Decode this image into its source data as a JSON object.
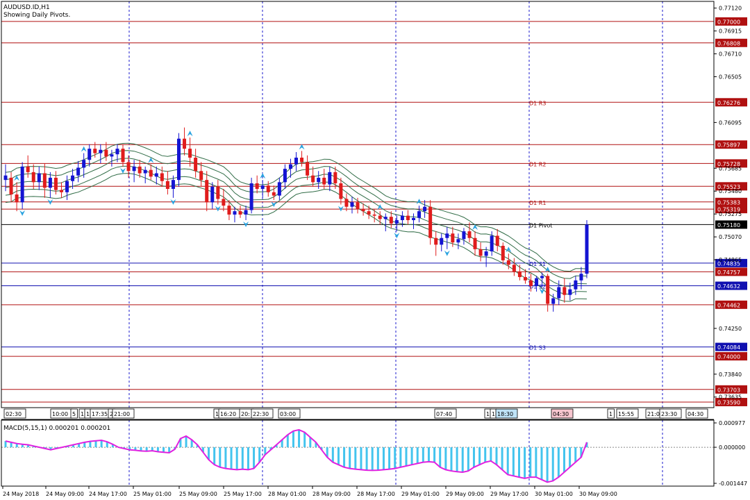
{
  "header": {
    "symbol": "AUDUSD.ID,H1",
    "subtitle": "Showing Daily Pivots."
  },
  "colors": {
    "bull": "#1414d2",
    "bear": "#e01c1c",
    "band": "#2f6b45",
    "resistance_line": "#b01010",
    "support_line": "#1010b0",
    "macd_hist": "#43c4ee",
    "macd_signal": "#e020e0",
    "arrow": "#2aa3e0",
    "grid": "#1a1acc"
  },
  "chart_data": {
    "type": "candlestick",
    "y_range": [
      0.7354,
      0.7718
    ],
    "price_ticks": [
      "0.77120",
      "0.76915",
      "0.76710",
      "0.76505",
      "0.76095",
      "0.75685",
      "0.75480",
      "0.75275",
      "0.75070",
      "0.74865",
      "0.74250",
      "0.73840",
      "0.73635"
    ],
    "pivot_lines": [
      {
        "name": "",
        "value": 0.77,
        "label": "0.77000",
        "kind": "res"
      },
      {
        "name": "",
        "value": 0.76808,
        "label": "0.76808",
        "kind": "res"
      },
      {
        "name": "D1 R3",
        "value": 0.76276,
        "label": "0.76276",
        "kind": "res"
      },
      {
        "name": "",
        "value": 0.75897,
        "label": "0.75897",
        "kind": "res"
      },
      {
        "name": "D1 R2",
        "value": 0.75728,
        "label": "0.75728",
        "kind": "res"
      },
      {
        "name": "",
        "value": 0.75523,
        "label": "0.75523",
        "kind": "res"
      },
      {
        "name": "D1 R1",
        "value": 0.75383,
        "label": "0.75383",
        "kind": "res"
      },
      {
        "name": "",
        "value": 0.75319,
        "label": "0.75319",
        "kind": "res"
      },
      {
        "name": "D1 Pivot",
        "value": 0.7518,
        "label": "0.75180",
        "kind": "current"
      },
      {
        "name": "D1 S1",
        "value": 0.74835,
        "label": "0.74835",
        "kind": "sup"
      },
      {
        "name": "",
        "value": 0.74757,
        "label": "0.74757",
        "kind": "res"
      },
      {
        "name": "D1 S2",
        "value": 0.74632,
        "label": "0.74632",
        "kind": "sup"
      },
      {
        "name": "",
        "value": 0.74462,
        "label": "0.74462",
        "kind": "res"
      },
      {
        "name": "D1 S3",
        "value": 0.74084,
        "label": "0.74084",
        "kind": "sup"
      },
      {
        "name": "",
        "value": 0.74,
        "label": "0.74000",
        "kind": "res"
      },
      {
        "name": "",
        "value": 0.73703,
        "label": "0.73703",
        "kind": "res"
      },
      {
        "name": "",
        "value": 0.7359,
        "label": "0.73590",
        "kind": "res"
      }
    ],
    "candles": [
      {
        "o": 0.7558,
        "h": 0.7572,
        "l": 0.7548,
        "c": 0.7562
      },
      {
        "o": 0.756,
        "h": 0.7565,
        "l": 0.7538,
        "c": 0.7545
      },
      {
        "o": 0.7545,
        "h": 0.7556,
        "l": 0.753,
        "c": 0.7538
      },
      {
        "o": 0.7538,
        "h": 0.7574,
        "l": 0.7532,
        "c": 0.757
      },
      {
        "o": 0.757,
        "h": 0.758,
        "l": 0.756,
        "c": 0.7565
      },
      {
        "o": 0.7565,
        "h": 0.7572,
        "l": 0.755,
        "c": 0.7556
      },
      {
        "o": 0.7556,
        "h": 0.757,
        "l": 0.7549,
        "c": 0.7564
      },
      {
        "o": 0.7564,
        "h": 0.7573,
        "l": 0.7542,
        "c": 0.7551
      },
      {
        "o": 0.7551,
        "h": 0.7565,
        "l": 0.7542,
        "c": 0.756
      },
      {
        "o": 0.756,
        "h": 0.7566,
        "l": 0.7545,
        "c": 0.7549
      },
      {
        "o": 0.7549,
        "h": 0.7556,
        "l": 0.7542,
        "c": 0.7547
      },
      {
        "o": 0.7547,
        "h": 0.7562,
        "l": 0.754,
        "c": 0.7557
      },
      {
        "o": 0.7557,
        "h": 0.7568,
        "l": 0.755,
        "c": 0.7562
      },
      {
        "o": 0.7562,
        "h": 0.7575,
        "l": 0.7556,
        "c": 0.7569
      },
      {
        "o": 0.7569,
        "h": 0.7582,
        "l": 0.756,
        "c": 0.7576
      },
      {
        "o": 0.7576,
        "h": 0.759,
        "l": 0.757,
        "c": 0.7586
      },
      {
        "o": 0.7586,
        "h": 0.7592,
        "l": 0.7578,
        "c": 0.7582
      },
      {
        "o": 0.7582,
        "h": 0.759,
        "l": 0.7573,
        "c": 0.7585
      },
      {
        "o": 0.7585,
        "h": 0.7592,
        "l": 0.7575,
        "c": 0.7579
      },
      {
        "o": 0.7579,
        "h": 0.7585,
        "l": 0.757,
        "c": 0.7581
      },
      {
        "o": 0.7581,
        "h": 0.759,
        "l": 0.7574,
        "c": 0.7586
      },
      {
        "o": 0.7586,
        "h": 0.759,
        "l": 0.757,
        "c": 0.7574
      },
      {
        "o": 0.7574,
        "h": 0.758,
        "l": 0.756,
        "c": 0.7566
      },
      {
        "o": 0.7566,
        "h": 0.7576,
        "l": 0.7556,
        "c": 0.757
      },
      {
        "o": 0.757,
        "h": 0.7576,
        "l": 0.756,
        "c": 0.7564
      },
      {
        "o": 0.7564,
        "h": 0.757,
        "l": 0.7555,
        "c": 0.7567
      },
      {
        "o": 0.7567,
        "h": 0.7572,
        "l": 0.7558,
        "c": 0.7561
      },
      {
        "o": 0.7561,
        "h": 0.757,
        "l": 0.7554,
        "c": 0.7564
      },
      {
        "o": 0.7564,
        "h": 0.757,
        "l": 0.7552,
        "c": 0.7557
      },
      {
        "o": 0.7557,
        "h": 0.7566,
        "l": 0.7545,
        "c": 0.755
      },
      {
        "o": 0.755,
        "h": 0.7562,
        "l": 0.7542,
        "c": 0.7558
      },
      {
        "o": 0.7558,
        "h": 0.76,
        "l": 0.7552,
        "c": 0.7595
      },
      {
        "o": 0.7595,
        "h": 0.7605,
        "l": 0.758,
        "c": 0.7586
      },
      {
        "o": 0.7586,
        "h": 0.7596,
        "l": 0.757,
        "c": 0.7578
      },
      {
        "o": 0.7578,
        "h": 0.7586,
        "l": 0.756,
        "c": 0.7566
      },
      {
        "o": 0.7566,
        "h": 0.7574,
        "l": 0.7552,
        "c": 0.7558
      },
      {
        "o": 0.7558,
        "h": 0.7566,
        "l": 0.753,
        "c": 0.7538
      },
      {
        "o": 0.7538,
        "h": 0.7556,
        "l": 0.7532,
        "c": 0.7552
      },
      {
        "o": 0.7552,
        "h": 0.7558,
        "l": 0.7536,
        "c": 0.7541
      },
      {
        "o": 0.7541,
        "h": 0.755,
        "l": 0.753,
        "c": 0.7535
      },
      {
        "o": 0.7535,
        "h": 0.754,
        "l": 0.7522,
        "c": 0.7527
      },
      {
        "o": 0.7527,
        "h": 0.7534,
        "l": 0.752,
        "c": 0.753
      },
      {
        "o": 0.753,
        "h": 0.7535,
        "l": 0.7524,
        "c": 0.7527
      },
      {
        "o": 0.7527,
        "h": 0.7535,
        "l": 0.7522,
        "c": 0.7531
      },
      {
        "o": 0.7531,
        "h": 0.756,
        "l": 0.7528,
        "c": 0.7555
      },
      {
        "o": 0.7555,
        "h": 0.7562,
        "l": 0.7546,
        "c": 0.755
      },
      {
        "o": 0.755,
        "h": 0.7558,
        "l": 0.7542,
        "c": 0.7553
      },
      {
        "o": 0.7553,
        "h": 0.7557,
        "l": 0.7543,
        "c": 0.7547
      },
      {
        "o": 0.7547,
        "h": 0.7553,
        "l": 0.754,
        "c": 0.7544
      },
      {
        "o": 0.7544,
        "h": 0.756,
        "l": 0.754,
        "c": 0.7556
      },
      {
        "o": 0.7556,
        "h": 0.7572,
        "l": 0.755,
        "c": 0.7568
      },
      {
        "o": 0.7568,
        "h": 0.7577,
        "l": 0.756,
        "c": 0.7572
      },
      {
        "o": 0.7572,
        "h": 0.7583,
        "l": 0.7566,
        "c": 0.7578
      },
      {
        "o": 0.7578,
        "h": 0.7584,
        "l": 0.757,
        "c": 0.7574
      },
      {
        "o": 0.7574,
        "h": 0.758,
        "l": 0.7558,
        "c": 0.7562
      },
      {
        "o": 0.7562,
        "h": 0.757,
        "l": 0.7552,
        "c": 0.7556
      },
      {
        "o": 0.7556,
        "h": 0.7566,
        "l": 0.755,
        "c": 0.756
      },
      {
        "o": 0.756,
        "h": 0.7568,
        "l": 0.755,
        "c": 0.7554
      },
      {
        "o": 0.7554,
        "h": 0.757,
        "l": 0.7548,
        "c": 0.7565
      },
      {
        "o": 0.7565,
        "h": 0.757,
        "l": 0.755,
        "c": 0.7555
      },
      {
        "o": 0.7555,
        "h": 0.756,
        "l": 0.7536,
        "c": 0.7541
      },
      {
        "o": 0.7541,
        "h": 0.7546,
        "l": 0.753,
        "c": 0.7534
      },
      {
        "o": 0.7534,
        "h": 0.7543,
        "l": 0.7528,
        "c": 0.7538
      },
      {
        "o": 0.7538,
        "h": 0.7542,
        "l": 0.7528,
        "c": 0.7532
      },
      {
        "o": 0.7532,
        "h": 0.7537,
        "l": 0.7526,
        "c": 0.753
      },
      {
        "o": 0.753,
        "h": 0.7535,
        "l": 0.7523,
        "c": 0.7527
      },
      {
        "o": 0.7527,
        "h": 0.7532,
        "l": 0.752,
        "c": 0.7526
      },
      {
        "o": 0.7526,
        "h": 0.753,
        "l": 0.7518,
        "c": 0.7523
      },
      {
        "o": 0.7523,
        "h": 0.7528,
        "l": 0.7512,
        "c": 0.7525
      },
      {
        "o": 0.7525,
        "h": 0.753,
        "l": 0.7515,
        "c": 0.7519
      },
      {
        "o": 0.7519,
        "h": 0.7526,
        "l": 0.7512,
        "c": 0.7522
      },
      {
        "o": 0.7522,
        "h": 0.753,
        "l": 0.7516,
        "c": 0.7526
      },
      {
        "o": 0.7526,
        "h": 0.7531,
        "l": 0.7518,
        "c": 0.7522
      },
      {
        "o": 0.7522,
        "h": 0.7528,
        "l": 0.7514,
        "c": 0.7524
      },
      {
        "o": 0.7524,
        "h": 0.7535,
        "l": 0.752,
        "c": 0.753
      },
      {
        "o": 0.753,
        "h": 0.754,
        "l": 0.7524,
        "c": 0.7534
      },
      {
        "o": 0.7534,
        "h": 0.754,
        "l": 0.75,
        "c": 0.7506
      },
      {
        "o": 0.7506,
        "h": 0.7512,
        "l": 0.749,
        "c": 0.75
      },
      {
        "o": 0.75,
        "h": 0.751,
        "l": 0.7494,
        "c": 0.7506
      },
      {
        "o": 0.7506,
        "h": 0.7516,
        "l": 0.7496,
        "c": 0.751
      },
      {
        "o": 0.751,
        "h": 0.7516,
        "l": 0.7498,
        "c": 0.7502
      },
      {
        "o": 0.7502,
        "h": 0.751,
        "l": 0.7496,
        "c": 0.7505
      },
      {
        "o": 0.7505,
        "h": 0.7515,
        "l": 0.75,
        "c": 0.7512
      },
      {
        "o": 0.7512,
        "h": 0.752,
        "l": 0.7502,
        "c": 0.7506
      },
      {
        "o": 0.7506,
        "h": 0.7512,
        "l": 0.749,
        "c": 0.7496
      },
      {
        "o": 0.7496,
        "h": 0.7502,
        "l": 0.7485,
        "c": 0.749
      },
      {
        "o": 0.749,
        "h": 0.7498,
        "l": 0.748,
        "c": 0.7494
      },
      {
        "o": 0.7494,
        "h": 0.7512,
        "l": 0.749,
        "c": 0.7508
      },
      {
        "o": 0.7508,
        "h": 0.7514,
        "l": 0.7494,
        "c": 0.7499
      },
      {
        "o": 0.7499,
        "h": 0.7502,
        "l": 0.7482,
        "c": 0.7486
      },
      {
        "o": 0.7486,
        "h": 0.7492,
        "l": 0.7478,
        "c": 0.7482
      },
      {
        "o": 0.7482,
        "h": 0.7488,
        "l": 0.7472,
        "c": 0.7476
      },
      {
        "o": 0.7476,
        "h": 0.7482,
        "l": 0.7468,
        "c": 0.7471
      },
      {
        "o": 0.7471,
        "h": 0.7478,
        "l": 0.7465,
        "c": 0.7468
      },
      {
        "o": 0.7468,
        "h": 0.7474,
        "l": 0.7458,
        "c": 0.7463
      },
      {
        "o": 0.7463,
        "h": 0.7472,
        "l": 0.7458,
        "c": 0.747
      },
      {
        "o": 0.747,
        "h": 0.7475,
        "l": 0.7462,
        "c": 0.7472
      },
      {
        "o": 0.7472,
        "h": 0.7474,
        "l": 0.744,
        "c": 0.7447
      },
      {
        "o": 0.7447,
        "h": 0.7456,
        "l": 0.744,
        "c": 0.7452
      },
      {
        "o": 0.7452,
        "h": 0.7468,
        "l": 0.7446,
        "c": 0.7462
      },
      {
        "o": 0.7462,
        "h": 0.747,
        "l": 0.7448,
        "c": 0.7455
      },
      {
        "o": 0.7455,
        "h": 0.7466,
        "l": 0.745,
        "c": 0.746
      },
      {
        "o": 0.746,
        "h": 0.7472,
        "l": 0.7455,
        "c": 0.7468
      },
      {
        "o": 0.7468,
        "h": 0.748,
        "l": 0.746,
        "c": 0.7474
      },
      {
        "o": 0.7474,
        "h": 0.7522,
        "l": 0.747,
        "c": 0.7518
      }
    ],
    "time_markers": [
      {
        "text": "02:30",
        "x": 6,
        "hl": false
      },
      {
        "text": "10:00",
        "x": 73,
        "hl": false
      },
      {
        "text": "5",
        "x": 102,
        "hl": false
      },
      {
        "text": "1",
        "x": 114,
        "hl": false
      },
      {
        "text": "1",
        "x": 122,
        "hl": false
      },
      {
        "text": "17:35",
        "x": 130,
        "hl": false
      },
      {
        "text": "2",
        "x": 156,
        "hl": false
      },
      {
        "text": "21:00",
        "x": 162,
        "hl": false
      },
      {
        "text": "1",
        "x": 308,
        "hl": false
      },
      {
        "text": "16:20",
        "x": 315,
        "hl": false
      },
      {
        "text": "20:",
        "x": 345,
        "hl": false
      },
      {
        "text": "22:30",
        "x": 362,
        "hl": false
      },
      {
        "text": "03:00",
        "x": 401,
        "hl": false
      },
      {
        "text": "07:40",
        "x": 626,
        "hl": false
      },
      {
        "text": "1",
        "x": 698,
        "hl": false
      },
      {
        "text": "1",
        "x": 706,
        "hl": false
      },
      {
        "text": "18:30",
        "x": 714,
        "hl": true
      },
      {
        "text": "04:30",
        "x": 794,
        "hl": "pink"
      },
      {
        "text": "1",
        "x": 875,
        "hl": false
      },
      {
        "text": "15:55",
        "x": 888,
        "hl": false
      },
      {
        "text": "21:0",
        "x": 930,
        "hl": false
      },
      {
        "text": "23:30",
        "x": 950,
        "hl": false
      },
      {
        "text": "04:30",
        "x": 988,
        "hl": false
      }
    ],
    "date_labels": [
      "24 May 2018",
      "24 May 09:00",
      "24 May 17:00",
      "25 May 01:00",
      "25 May 09:00",
      "25 May 17:00",
      "28 May 01:00",
      "28 May 09:00",
      "28 May 17:00",
      "29 May 01:00",
      "29 May 09:00",
      "29 May 17:00",
      "30 May 01:00",
      "30 May 09:00"
    ],
    "macd": {
      "label": "MACD(5,15,1) 0.000201 0.000201",
      "y_range": [
        -0.001447,
        0.000977
      ],
      "ticks": [
        "0.000977",
        "0.000000",
        "-0.001447"
      ],
      "values": [
        0.00025,
        0.0002,
        0.00015,
        0.00012,
        0.0001,
        5e-05,
        0.0,
        -5e-05,
        -0.0001,
        -5e-05,
        0.0,
        5e-05,
        0.0001,
        0.00015,
        0.0002,
        0.00024,
        0.00026,
        0.00028,
        0.00022,
        0.00012,
        0.0,
        -5e-05,
        -0.0001,
        -0.00012,
        -0.00015,
        -0.00016,
        -0.00014,
        -0.00018,
        -0.0002,
        -0.00022,
        -8e-05,
        0.00035,
        0.00045,
        0.0003,
        0.0001,
        -0.0002,
        -0.0005,
        -0.0007,
        -0.0008,
        -0.00085,
        -0.00088,
        -0.0009,
        -0.00088,
        -0.0009,
        -0.00085,
        -0.0006,
        -0.0003,
        -0.0001,
        0.0001,
        0.0003,
        0.0005,
        0.00065,
        0.0007,
        0.0006,
        0.0004,
        0.0002,
        -0.0001,
        -0.0004,
        -0.0006,
        -0.0007,
        -0.0008,
        -0.00085,
        -0.00088,
        -0.0009,
        -0.00092,
        -0.00093,
        -0.00092,
        -0.0009,
        -0.00088,
        -0.00085,
        -0.0008,
        -0.00075,
        -0.0007,
        -0.00065,
        -0.0006,
        -0.00058,
        -0.0006,
        -0.0008,
        -0.0009,
        -0.00095,
        -0.00098,
        -0.001,
        -0.00095,
        -0.0008,
        -0.0007,
        -0.0006,
        -0.00055,
        -0.0007,
        -0.0009,
        -0.0011,
        -0.00115,
        -0.0012,
        -0.00125,
        -0.0012,
        -0.0012,
        -0.0013,
        -0.0014,
        -0.00135,
        -0.0012,
        -0.001,
        -0.0008,
        -0.0006,
        -0.0004,
        0.000201
      ]
    }
  }
}
